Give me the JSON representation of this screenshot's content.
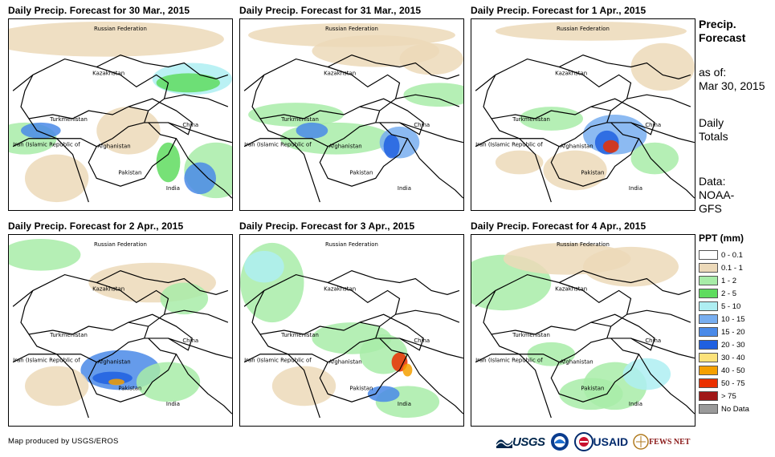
{
  "panels": [
    {
      "title": "Daily Precip. Forecast for 30 Mar., 2015"
    },
    {
      "title": "Daily Precip. Forecast for 31 Mar., 2015"
    },
    {
      "title": "Daily Precip. Forecast for 1 Apr., 2015"
    },
    {
      "title": "Daily Precip. Forecast for 2 Apr., 2015"
    },
    {
      "title": "Daily Precip. Forecast for 3 Apr., 2015"
    },
    {
      "title": "Daily Precip. Forecast for 4 Apr., 2015"
    }
  ],
  "map_labels": {
    "russia": "Russian Federation",
    "kazakhstan": "Kazakhstan",
    "turkmenistan": "Turkmenistan",
    "china": "China",
    "iran": "Iran (Islamic Republic of",
    "afghanistan": "Afghanistan",
    "pakistan": "Pakistan",
    "india": "India"
  },
  "sidebar": {
    "line1": "Precip.",
    "line2": "Forecast",
    "line3": "as of:",
    "line4": "Mar 30, 2015",
    "line5": "Daily",
    "line6": "Totals",
    "line7": "Data:",
    "line8": "NOAA-",
    "line9": "GFS"
  },
  "legend": {
    "title": "PPT (mm)",
    "items": [
      {
        "label": "0 - 0.1",
        "color": "#ffffff"
      },
      {
        "label": "0.1 - 1",
        "color": "#ecd9b9"
      },
      {
        "label": "1 - 2",
        "color": "#a8eca8"
      },
      {
        "label": "2 - 5",
        "color": "#5fdc5f"
      },
      {
        "label": "5 - 10",
        "color": "#aeeef2"
      },
      {
        "label": "10 - 15",
        "color": "#78aef0"
      },
      {
        "label": "15 - 20",
        "color": "#4a8ae8"
      },
      {
        "label": "20 - 30",
        "color": "#2060e0"
      },
      {
        "label": "30 - 40",
        "color": "#fce27a"
      },
      {
        "label": "40 - 50",
        "color": "#f5a000"
      },
      {
        "label": "50 - 75",
        "color": "#ea3000"
      },
      {
        "label": "> 75",
        "color": "#a01818"
      },
      {
        "label": "No Data",
        "color": "#9a9a9a"
      }
    ]
  },
  "credit": "Map produced by USGS/EROS",
  "logos": {
    "usgs": "USGS",
    "usaid": "USAID",
    "fews": "FEWS NET"
  }
}
